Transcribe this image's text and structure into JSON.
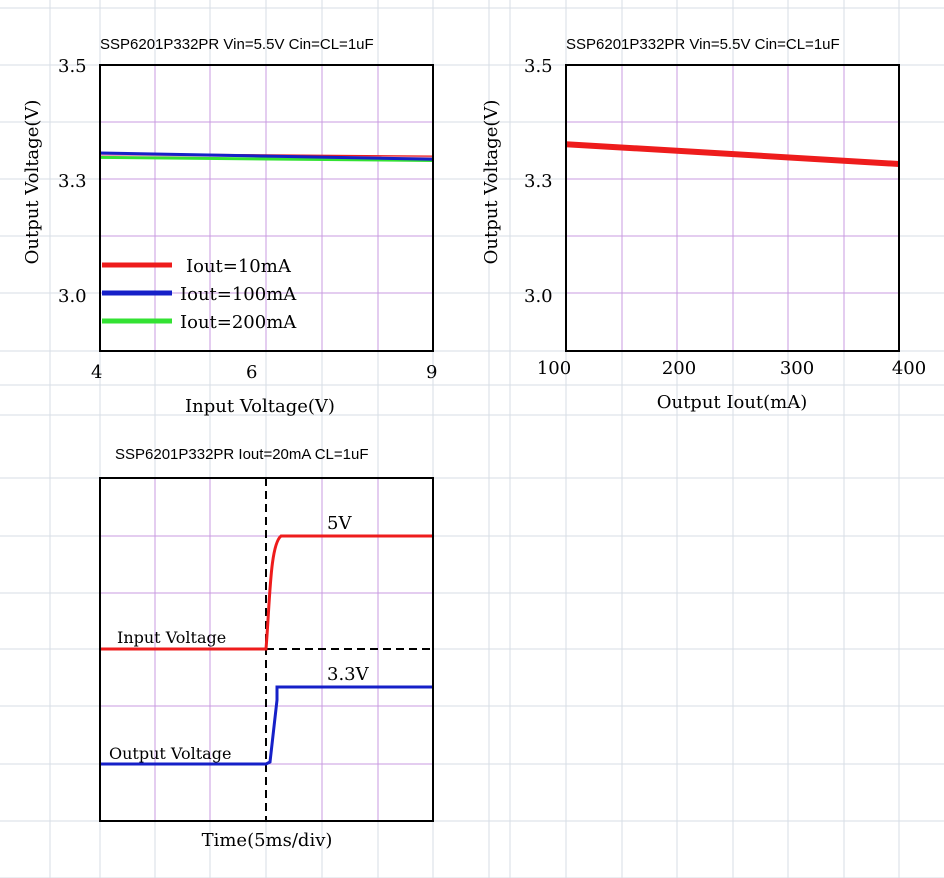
{
  "colors": {
    "sheet_grid": "#d7dde6",
    "plot_grid": "#c89be0",
    "frame": "#000000",
    "red": "#ee1c1c",
    "blue": "#1620c8",
    "green": "#33e233",
    "pink": "#e89ab0"
  },
  "chart_data": [
    {
      "type": "line",
      "title": "SSP6201P332PR Vin=5.5V Cin=CL=1uF",
      "xlabel": "Input Voltage(V)",
      "ylabel": "Output Voltage(V)",
      "xlim": [
        4,
        9
      ],
      "ylim": [
        2.85,
        3.5
      ],
      "xticks": [
        4,
        6,
        9
      ],
      "yticks": [
        3.5,
        3.3,
        3.0
      ],
      "xtick_labels": [
        "4",
        "6",
        "9"
      ],
      "ytick_labels": [
        "3.5",
        "3.3",
        "3.0"
      ],
      "grid": true,
      "legend_position": "lower-left",
      "legend": [
        "Iout=10mA",
        "Iout=100mA",
        "Iout=200mA"
      ],
      "series": [
        {
          "name": "Iout=200mA",
          "color": "green",
          "x": [
            4,
            9
          ],
          "y": [
            3.29,
            3.283
          ]
        },
        {
          "name": "Iout=10mA",
          "color": "red",
          "x": [
            4,
            9
          ],
          "y": [
            3.298,
            3.292
          ]
        },
        {
          "x": [
            4,
            9
          ],
          "y": [
            3.295,
            3.29
          ],
          "color": "pink"
        },
        {
          "name": "Iout=100mA",
          "color": "blue",
          "x": [
            4,
            9
          ],
          "y": [
            3.3,
            3.286
          ]
        }
      ]
    },
    {
      "type": "line",
      "title": "SSP6201P332PR Vin=5.5V Cin=CL=1uF",
      "xlabel": "Output Iout(mA)",
      "ylabel": "Output Voltage(V)",
      "xlim": [
        100,
        400
      ],
      "ylim": [
        2.85,
        3.5
      ],
      "xticks": [
        100,
        200,
        300,
        400
      ],
      "yticks": [
        3.5,
        3.3,
        3.0
      ],
      "xtick_labels": [
        "100",
        "200",
        "300",
        "400"
      ],
      "ytick_labels": [
        "3.5",
        "3.3",
        "3.0"
      ],
      "grid": true,
      "series": [
        {
          "color": "red",
          "x": [
            100,
            400
          ],
          "y": [
            3.32,
            3.275
          ]
        }
      ]
    },
    {
      "type": "line",
      "title": "SSP6201P332PR Iout=20mA CL=1uF",
      "xlabel": "Time(5ms/div)",
      "grid": true,
      "annotations": [
        "5V",
        "Input Voltage",
        "3.3V",
        "Output Voltage"
      ],
      "series": [
        {
          "label": "Input Voltage",
          "level_label": "5V",
          "color": "red",
          "low": 0,
          "high": 5
        },
        {
          "label": "Output Voltage",
          "level_label": "3.3V",
          "color": "blue",
          "low": 0,
          "high": 3.3
        }
      ]
    }
  ]
}
